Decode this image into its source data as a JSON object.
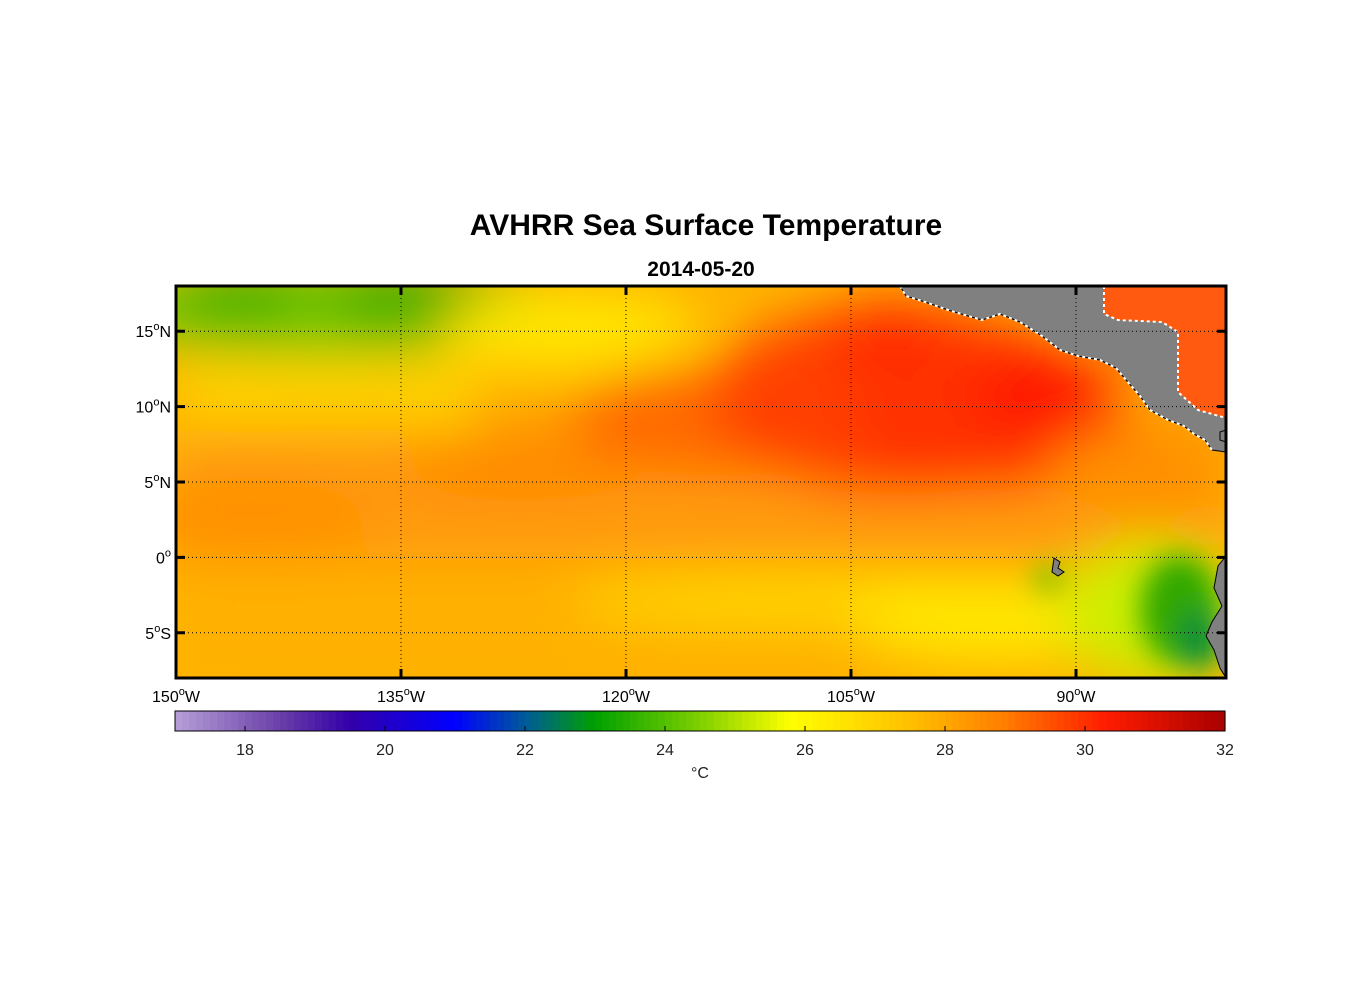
{
  "title": "AVHRR Sea Surface Temperature",
  "subtitle": "2014-05-20",
  "map": {
    "lon_range": [
      -150,
      -80
    ],
    "lat_range": [
      -8,
      18
    ],
    "grid": true,
    "lon_ticks": [
      {
        "value": -150,
        "num": "150",
        "deg": "o",
        "hemi": "W"
      },
      {
        "value": -135,
        "num": "135",
        "deg": "o",
        "hemi": "W"
      },
      {
        "value": -120,
        "num": "120",
        "deg": "o",
        "hemi": "W"
      },
      {
        "value": -105,
        "num": "105",
        "deg": "o",
        "hemi": "W"
      },
      {
        "value": -90,
        "num": "90",
        "deg": "o",
        "hemi": "W"
      }
    ],
    "lat_ticks": [
      {
        "value": 15,
        "num": "15",
        "deg": "o",
        "hemi": "N"
      },
      {
        "value": 10,
        "num": "10",
        "deg": "o",
        "hemi": "N"
      },
      {
        "value": 5,
        "num": "5",
        "deg": "o",
        "hemi": "N"
      },
      {
        "value": 0,
        "num": "0",
        "deg": "o",
        "hemi": ""
      },
      {
        "value": -5,
        "num": "5",
        "deg": "o",
        "hemi": "S"
      }
    ],
    "land_color": "#808080"
  },
  "colorbar": {
    "range": [
      17,
      32
    ],
    "ticks": [
      18,
      20,
      22,
      24,
      26,
      28,
      30,
      32
    ],
    "label": "°C",
    "colormap": [
      {
        "v": 17,
        "c": "#b79fd8"
      },
      {
        "v": 18.5,
        "c": "#6a3fa8"
      },
      {
        "v": 19.5,
        "c": "#3300aa"
      },
      {
        "v": 21,
        "c": "#0000ff"
      },
      {
        "v": 22,
        "c": "#005a9a"
      },
      {
        "v": 23,
        "c": "#00a000"
      },
      {
        "v": 24.5,
        "c": "#7fd000"
      },
      {
        "v": 25.8,
        "c": "#ffff00"
      },
      {
        "v": 27.5,
        "c": "#ffc000"
      },
      {
        "v": 28.8,
        "c": "#ff8000"
      },
      {
        "v": 30.3,
        "c": "#ff1c00"
      },
      {
        "v": 32,
        "c": "#a80000"
      }
    ]
  },
  "chart_data": {
    "type": "heatmap",
    "title": "AVHRR Sea Surface Temperature",
    "subtitle": "2014-05-20",
    "xlabel": "",
    "ylabel": "",
    "colorbar_label": "°C",
    "xlim": [
      -150,
      -80
    ],
    "ylim": [
      -8,
      18
    ],
    "value_range": [
      17,
      32
    ],
    "x": [
      -145,
      -135,
      -125,
      -115,
      -105,
      -95,
      -85
    ],
    "y": [
      15,
      10,
      5,
      0,
      -5
    ],
    "values": [
      [
        24.5,
        24.0,
        26.0,
        28.5,
        30.0,
        30.0,
        null
      ],
      [
        26.5,
        26.8,
        27.5,
        28.6,
        29.5,
        30.0,
        null
      ],
      [
        28.0,
        27.8,
        28.2,
        28.2,
        28.5,
        29.0,
        29.0
      ],
      [
        27.5,
        27.3,
        27.0,
        26.8,
        26.8,
        26.5,
        24.5
      ],
      [
        27.8,
        27.5,
        27.2,
        27.0,
        26.8,
        26.0,
        24.0
      ]
    ]
  }
}
